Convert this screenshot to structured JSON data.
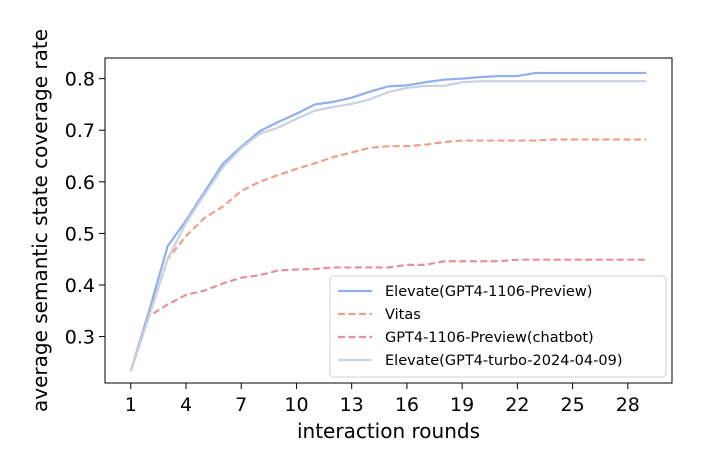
{
  "chart_data": {
    "type": "line",
    "xlabel": "interaction rounds",
    "ylabel": "average semantic state coverage rate",
    "xlim": [
      -0.4,
      30.4
    ],
    "ylim": [
      0.21,
      0.84
    ],
    "xticks": [
      1,
      4,
      7,
      10,
      13,
      16,
      19,
      22,
      25,
      28
    ],
    "yticks": [
      0.3,
      0.4,
      0.5,
      0.6,
      0.7,
      0.8
    ],
    "xtick_labels": [
      "1",
      "4",
      "7",
      "10",
      "13",
      "16",
      "19",
      "22",
      "25",
      "28"
    ],
    "ytick_labels": [
      "0.3",
      "0.4",
      "0.5",
      "0.6",
      "0.7",
      "0.8"
    ],
    "legend_position": "lower-right",
    "grid": false,
    "x": [
      1,
      2,
      3,
      4,
      5,
      6,
      7,
      8,
      9,
      10,
      11,
      12,
      13,
      14,
      15,
      16,
      17,
      18,
      19,
      20,
      21,
      22,
      23,
      24,
      25,
      26,
      27,
      28,
      29
    ],
    "series": [
      {
        "name": "Elevate(GPT4-1106-Preview)",
        "color": "#8fb0ec",
        "dash": "solid",
        "values": [
          0.233,
          0.35,
          0.475,
          0.525,
          0.58,
          0.635,
          0.668,
          0.698,
          0.716,
          0.732,
          0.75,
          0.755,
          0.763,
          0.775,
          0.785,
          0.787,
          0.793,
          0.798,
          0.8,
          0.803,
          0.805,
          0.805,
          0.811,
          0.811,
          0.811,
          0.811,
          0.811,
          0.811,
          0.811
        ]
      },
      {
        "name": "Vitas",
        "color": "#f0a088",
        "dash": "dashed",
        "values": [
          0.233,
          0.34,
          0.45,
          0.495,
          0.53,
          0.552,
          0.582,
          0.6,
          0.613,
          0.625,
          0.636,
          0.648,
          0.657,
          0.666,
          0.669,
          0.669,
          0.672,
          0.677,
          0.68,
          0.68,
          0.68,
          0.68,
          0.68,
          0.682,
          0.682,
          0.682,
          0.682,
          0.682,
          0.682
        ]
      },
      {
        "name": "GPT4-1106-Preview(chatbot)",
        "color": "#e6909a",
        "dash": "dashed",
        "values": [
          0.233,
          0.34,
          0.362,
          0.381,
          0.389,
          0.403,
          0.414,
          0.419,
          0.428,
          0.43,
          0.431,
          0.434,
          0.434,
          0.434,
          0.434,
          0.439,
          0.439,
          0.446,
          0.446,
          0.446,
          0.446,
          0.449,
          0.449,
          0.449,
          0.449,
          0.449,
          0.449,
          0.449,
          0.449
        ]
      },
      {
        "name": "Elevate(GPT4-turbo-2024-04-09)",
        "color": "#c8d2e2",
        "dash": "solid",
        "values": [
          0.233,
          0.34,
          0.45,
          0.52,
          0.575,
          0.628,
          0.665,
          0.693,
          0.705,
          0.722,
          0.738,
          0.745,
          0.751,
          0.76,
          0.774,
          0.782,
          0.786,
          0.786,
          0.793,
          0.795,
          0.795,
          0.795,
          0.795,
          0.795,
          0.795,
          0.795,
          0.795,
          0.795,
          0.795
        ]
      }
    ]
  }
}
